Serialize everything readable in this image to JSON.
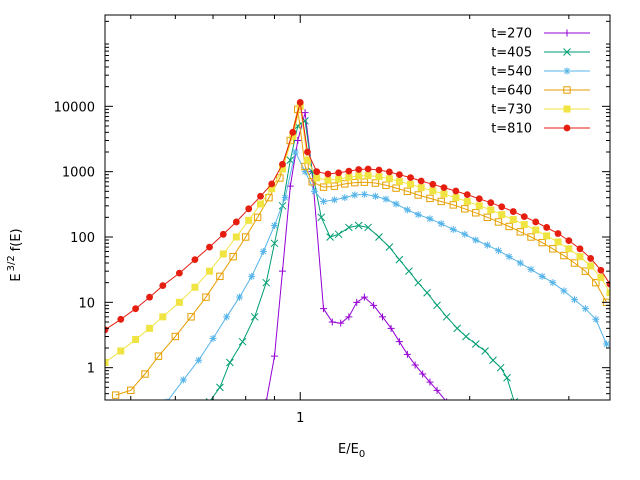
{
  "chart_data": {
    "type": "line",
    "xscale": "log",
    "yscale": "log",
    "xlim": [
      0.45,
      3.55
    ],
    "ylim": [
      0.32,
      250000
    ],
    "xlabel": "E/E",
    "xlabel_sub": "0",
    "ylabel": "E",
    "ylabel_sup": "3/2",
    "ylabel_tail": "f(E)",
    "grid": false,
    "legend_position": "top-right",
    "x_ticks": [
      {
        "value": 1,
        "label": "1"
      }
    ],
    "y_ticks": [
      {
        "value": 1,
        "label": "1"
      },
      {
        "value": 10,
        "label": "10"
      },
      {
        "value": 100,
        "label": "100"
      },
      {
        "value": 1000,
        "label": "1000"
      },
      {
        "value": 10000,
        "label": "10000"
      }
    ],
    "series": [
      {
        "name": "t=270",
        "color": "#9400d3",
        "marker": "plus",
        "x": [
          0.87,
          0.9,
          0.93,
          0.96,
          0.99,
          1.02,
          1.05,
          1.1,
          1.14,
          1.18,
          1.22,
          1.26,
          1.3,
          1.35,
          1.4,
          1.45,
          1.5,
          1.55,
          1.6,
          1.65,
          1.7,
          1.75,
          1.82
        ],
        "y": [
          0.3,
          1.5,
          30,
          600,
          3000,
          8000,
          1000,
          8,
          5,
          4.8,
          6,
          10,
          12,
          9,
          6,
          4,
          2.5,
          1.6,
          1.1,
          0.8,
          0.6,
          0.45,
          0.3
        ]
      },
      {
        "name": "t=405",
        "color": "#009e73",
        "marker": "x",
        "x": [
          0.69,
          0.72,
          0.75,
          0.79,
          0.83,
          0.87,
          0.9,
          0.93,
          0.96,
          0.99,
          1.02,
          1.05,
          1.09,
          1.13,
          1.17,
          1.22,
          1.27,
          1.32,
          1.38,
          1.44,
          1.5,
          1.56,
          1.62,
          1.68,
          1.75,
          1.82,
          1.9,
          1.97,
          2.05,
          2.13,
          2.2,
          2.27,
          2.33,
          2.4
        ],
        "y": [
          0.3,
          0.5,
          1.2,
          2.5,
          6,
          20,
          80,
          300,
          1500,
          5000,
          6000,
          1000,
          200,
          100,
          110,
          140,
          150,
          140,
          100,
          70,
          45,
          30,
          20,
          14,
          9,
          6,
          4,
          3,
          2.3,
          1.8,
          1.3,
          1.0,
          0.7,
          0.3
        ]
      },
      {
        "name": "t=540",
        "color": "#56b4e9",
        "marker": "star",
        "x": [
          0.58,
          0.62,
          0.66,
          0.7,
          0.74,
          0.78,
          0.82,
          0.86,
          0.9,
          0.94,
          0.98,
          1.02,
          1.06,
          1.1,
          1.15,
          1.2,
          1.25,
          1.3,
          1.36,
          1.42,
          1.48,
          1.55,
          1.62,
          1.7,
          1.78,
          1.87,
          1.96,
          2.05,
          2.15,
          2.25,
          2.35,
          2.46,
          2.57,
          2.69,
          2.81,
          2.94,
          3.07,
          3.21,
          3.35,
          3.5
        ],
        "y": [
          0.3,
          0.65,
          1.3,
          2.8,
          6,
          12,
          25,
          60,
          150,
          400,
          2000,
          1000,
          500,
          350,
          370,
          400,
          440,
          450,
          420,
          380,
          320,
          260,
          220,
          190,
          160,
          130,
          110,
          90,
          75,
          62,
          50,
          40,
          32,
          25,
          20,
          15,
          11,
          8,
          5.5,
          2.3
        ]
      },
      {
        "name": "t=640",
        "color": "#e69f00",
        "marker": "square-open",
        "x": [
          0.47,
          0.5,
          0.53,
          0.56,
          0.6,
          0.64,
          0.68,
          0.72,
          0.76,
          0.8,
          0.84,
          0.88,
          0.92,
          0.96,
          0.99,
          1.02,
          1.05,
          1.1,
          1.15,
          1.2,
          1.25,
          1.3,
          1.36,
          1.42,
          1.48,
          1.55,
          1.62,
          1.7,
          1.78,
          1.87,
          1.96,
          2.05,
          2.15,
          2.25,
          2.35,
          2.46,
          2.57,
          2.69,
          2.81,
          2.94,
          3.07,
          3.21,
          3.35,
          3.5
        ],
        "y": [
          0.38,
          0.45,
          0.8,
          1.5,
          3,
          6,
          12,
          25,
          50,
          100,
          200,
          400,
          800,
          3000,
          9000,
          1200,
          700,
          580,
          600,
          650,
          680,
          690,
          670,
          620,
          560,
          500,
          440,
          390,
          350,
          310,
          270,
          235,
          200,
          170,
          145,
          120,
          100,
          82,
          66,
          52,
          40,
          30,
          20,
          10
        ]
      },
      {
        "name": "t=730",
        "color": "#f0e442",
        "marker": "square-filled",
        "x": [
          0.45,
          0.48,
          0.51,
          0.54,
          0.57,
          0.61,
          0.65,
          0.69,
          0.73,
          0.77,
          0.81,
          0.85,
          0.89,
          0.93,
          0.97,
          1.0,
          1.03,
          1.07,
          1.12,
          1.17,
          1.22,
          1.27,
          1.32,
          1.38,
          1.44,
          1.5,
          1.57,
          1.64,
          1.72,
          1.8,
          1.89,
          1.98,
          2.08,
          2.18,
          2.28,
          2.39,
          2.5,
          2.62,
          2.74,
          2.87,
          3.0,
          3.14,
          3.28,
          3.42,
          3.55
        ],
        "y": [
          1.2,
          1.8,
          2.7,
          4,
          6,
          10,
          17,
          30,
          55,
          100,
          180,
          320,
          550,
          1100,
          3500,
          10000,
          1500,
          800,
          740,
          770,
          820,
          860,
          870,
          840,
          780,
          710,
          640,
          570,
          510,
          455,
          400,
          350,
          300,
          260,
          220,
          185,
          155,
          128,
          104,
          84,
          66,
          50,
          36,
          24,
          14
        ]
      },
      {
        "name": "t=810",
        "color": "#e51e10",
        "marker": "circle-filled",
        "x": [
          0.45,
          0.48,
          0.51,
          0.54,
          0.57,
          0.61,
          0.65,
          0.69,
          0.73,
          0.77,
          0.81,
          0.85,
          0.89,
          0.93,
          0.97,
          1.0,
          1.03,
          1.07,
          1.12,
          1.17,
          1.22,
          1.27,
          1.32,
          1.38,
          1.44,
          1.5,
          1.57,
          1.64,
          1.72,
          1.8,
          1.89,
          1.98,
          2.08,
          2.18,
          2.28,
          2.39,
          2.5,
          2.62,
          2.74,
          2.87,
          3.0,
          3.14,
          3.28,
          3.42,
          3.55
        ],
        "y": [
          3.8,
          5.5,
          8,
          12,
          18,
          28,
          45,
          70,
          110,
          170,
          270,
          420,
          650,
          1300,
          4000,
          11500,
          2000,
          1000,
          920,
          960,
          1020,
          1080,
          1100,
          1060,
          990,
          900,
          810,
          720,
          640,
          570,
          505,
          445,
          385,
          335,
          290,
          245,
          205,
          170,
          140,
          113,
          88,
          66,
          47,
          31,
          19
        ]
      }
    ]
  }
}
